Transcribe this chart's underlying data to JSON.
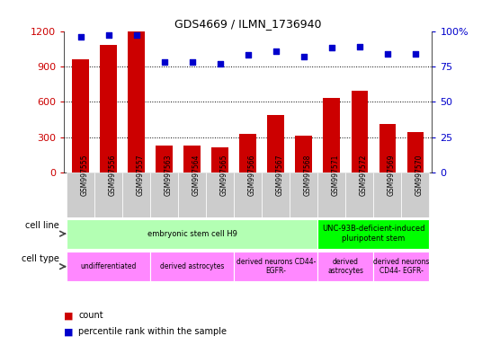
{
  "title": "GDS4669 / ILMN_1736940",
  "samples": [
    "GSM997555",
    "GSM997556",
    "GSM997557",
    "GSM997563",
    "GSM997564",
    "GSM997565",
    "GSM997566",
    "GSM997567",
    "GSM997568",
    "GSM997571",
    "GSM997572",
    "GSM997569",
    "GSM997570"
  ],
  "counts": [
    960,
    1080,
    1200,
    230,
    225,
    215,
    330,
    490,
    310,
    630,
    690,
    415,
    340
  ],
  "percentiles": [
    96,
    97,
    97,
    78,
    78,
    77,
    83,
    86,
    82,
    88,
    89,
    84,
    84
  ],
  "ylim_left": [
    0,
    1200
  ],
  "ylim_right": [
    0,
    100
  ],
  "yticks_left": [
    0,
    300,
    600,
    900,
    1200
  ],
  "yticks_right": [
    0,
    25,
    50,
    75,
    100
  ],
  "ytick_right_labels": [
    "0",
    "25",
    "50",
    "75",
    "100%"
  ],
  "bar_color": "#cc0000",
  "dot_color": "#0000cc",
  "cell_line_groups": [
    {
      "label": "embryonic stem cell H9",
      "start": 0,
      "end": 9,
      "color": "#b3ffb3"
    },
    {
      "label": "UNC-93B-deficient-induced\npluripotent stem",
      "start": 9,
      "end": 13,
      "color": "#00ff00"
    }
  ],
  "cell_type_groups": [
    {
      "label": "undifferentiated",
      "start": 0,
      "end": 3,
      "color": "#ff88ff"
    },
    {
      "label": "derived astrocytes",
      "start": 3,
      "end": 6,
      "color": "#ff88ff"
    },
    {
      "label": "derived neurons CD44-\nEGFR-",
      "start": 6,
      "end": 9,
      "color": "#ff88ff"
    },
    {
      "label": "derived\nastrocytes",
      "start": 9,
      "end": 11,
      "color": "#ff88ff"
    },
    {
      "label": "derived neurons\nCD44- EGFR-",
      "start": 11,
      "end": 13,
      "color": "#ff88ff"
    }
  ],
  "background_color": "#ffffff",
  "tick_label_color_left": "#cc0000",
  "tick_label_color_right": "#0000cc",
  "xtick_bg_color": "#cccccc",
  "left_label_color": "#444444"
}
